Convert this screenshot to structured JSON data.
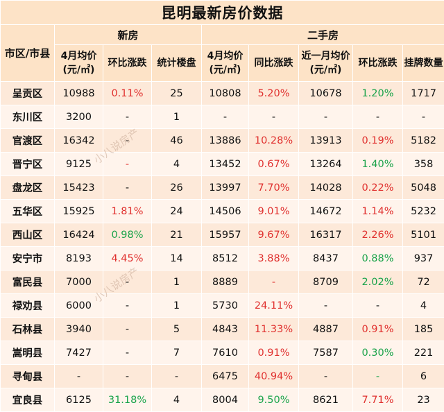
{
  "title": "昆明最新房价数据",
  "groups": {
    "region": "市区/市县",
    "new": "新房",
    "second": "二手房"
  },
  "headers": {
    "new_price": "4月均价(元/㎡)",
    "new_mom": "环比涨跌",
    "new_count": "统计楼盘",
    "sec_price": "4月均价(元/㎡)",
    "sec_yoy": "同比涨跌",
    "sec_recent": "近一月均价(元/㎡)",
    "sec_mom": "环比涨跌",
    "sec_listings": "挂牌数量"
  },
  "columns": [
    "region",
    "new_price",
    "new_mom",
    "new_count",
    "sec_price",
    "sec_yoy",
    "sec_recent",
    "sec_mom",
    "sec_listings"
  ],
  "rows": [
    {
      "region": "呈贡区",
      "new_price": "10988",
      "new_mom": "0.11%",
      "new_count": "25",
      "sec_price": "10808",
      "sec_yoy": "5.20%",
      "sec_recent": "10678",
      "sec_mom": "1.20%",
      "sec_listings": "1717"
    },
    {
      "region": "东川区",
      "new_price": "3200",
      "new_mom": "-",
      "new_count": "1",
      "sec_price": "-",
      "sec_yoy": "-",
      "sec_recent": "-",
      "sec_mom": "-",
      "sec_listings": "-"
    },
    {
      "region": "官渡区",
      "new_price": "16342",
      "new_mom": "-",
      "new_count": "46",
      "sec_price": "13886",
      "sec_yoy": "10.28%",
      "sec_recent": "13913",
      "sec_mom": "0.19%",
      "sec_listings": "5182"
    },
    {
      "region": "晋宁区",
      "new_price": "9125",
      "new_mom": "-",
      "new_count": "4",
      "sec_price": "13452",
      "sec_yoy": "0.67%",
      "sec_recent": "13264",
      "sec_mom": "1.40%",
      "sec_listings": "358"
    },
    {
      "region": "盘龙区",
      "new_price": "15423",
      "new_mom": "-",
      "new_count": "26",
      "sec_price": "13997",
      "sec_yoy": "7.70%",
      "sec_recent": "14028",
      "sec_mom": "0.22%",
      "sec_listings": "5048"
    },
    {
      "region": "五华区",
      "new_price": "15925",
      "new_mom": "1.81%",
      "new_count": "24",
      "sec_price": "14506",
      "sec_yoy": "9.01%",
      "sec_recent": "14672",
      "sec_mom": "1.14%",
      "sec_listings": "5232"
    },
    {
      "region": "西山区",
      "new_price": "16424",
      "new_mom": "0.98%",
      "new_count": "21",
      "sec_price": "15957",
      "sec_yoy": "9.67%",
      "sec_recent": "16317",
      "sec_mom": "2.26%",
      "sec_listings": "5101"
    },
    {
      "region": "安宁市",
      "new_price": "8193",
      "new_mom": "4.45%",
      "new_count": "14",
      "sec_price": "8512",
      "sec_yoy": "3.88%",
      "sec_recent": "8437",
      "sec_mom": "0.88%",
      "sec_listings": "937"
    },
    {
      "region": "富民县",
      "new_price": "7000",
      "new_mom": "-",
      "new_count": "1",
      "sec_price": "8889",
      "sec_yoy": "-",
      "sec_recent": "8709",
      "sec_mom": "2.02%",
      "sec_listings": "72"
    },
    {
      "region": "禄劝县",
      "new_price": "6000",
      "new_mom": "-",
      "new_count": "1",
      "sec_price": "5730",
      "sec_yoy": "24.11%",
      "sec_recent": "-",
      "sec_mom": "-",
      "sec_listings": "4"
    },
    {
      "region": "石林县",
      "new_price": "3940",
      "new_mom": "-",
      "new_count": "5",
      "sec_price": "4843",
      "sec_yoy": "11.33%",
      "sec_recent": "4887",
      "sec_mom": "0.91%",
      "sec_listings": "185"
    },
    {
      "region": "嵩明县",
      "new_price": "7427",
      "new_mom": "-",
      "new_count": "7",
      "sec_price": "7610",
      "sec_yoy": "0.91%",
      "sec_recent": "7587",
      "sec_mom": "0.30%",
      "sec_listings": "221"
    },
    {
      "region": "寻甸县",
      "new_price": "-",
      "new_mom": "-",
      "new_count": "-",
      "sec_price": "6475",
      "sec_yoy": "40.94%",
      "sec_recent": "-",
      "sec_mom": "-",
      "sec_listings": "6"
    },
    {
      "region": "宜良县",
      "new_price": "6125",
      "new_mom": "31.18%",
      "new_count": "4",
      "sec_price": "8004",
      "sec_yoy": "9.50%",
      "sec_recent": "8621",
      "sec_mom": "7.71%",
      "sec_listings": "23"
    }
  ],
  "colors": {
    "new_mom": "#e0302e",
    "sec_yoy": "#e0302e",
    "sec_mom": "#1aa34a",
    "header_bg": "#fde3c7",
    "row_alt_bg": "#fde9d9"
  },
  "cell_colors": {
    "0": {
      "new_mom": "red",
      "sec_yoy": "red",
      "sec_mom": "green"
    },
    "2": {
      "sec_yoy": "red",
      "sec_mom": "red"
    },
    "3": {
      "new_mom": "red",
      "sec_yoy": "red",
      "sec_mom": "green"
    },
    "4": {
      "sec_yoy": "red",
      "sec_mom": "red"
    },
    "5": {
      "new_mom": "red",
      "sec_yoy": "red",
      "sec_mom": "red"
    },
    "6": {
      "new_mom": "green",
      "sec_yoy": "red",
      "sec_mom": "red"
    },
    "7": {
      "new_mom": "red",
      "sec_yoy": "red",
      "sec_mom": "green"
    },
    "8": {
      "sec_yoy": "red",
      "sec_mom": "green"
    },
    "9": {
      "sec_yoy": "red"
    },
    "10": {
      "sec_yoy": "red",
      "sec_mom": "red"
    },
    "11": {
      "sec_yoy": "red",
      "sec_mom": "green"
    },
    "12": {
      "sec_yoy": "red",
      "sec_mom": "green"
    },
    "13": {
      "new_mom": "green",
      "sec_yoy": "green",
      "sec_mom": "red"
    }
  },
  "watermark": "小八说房产"
}
